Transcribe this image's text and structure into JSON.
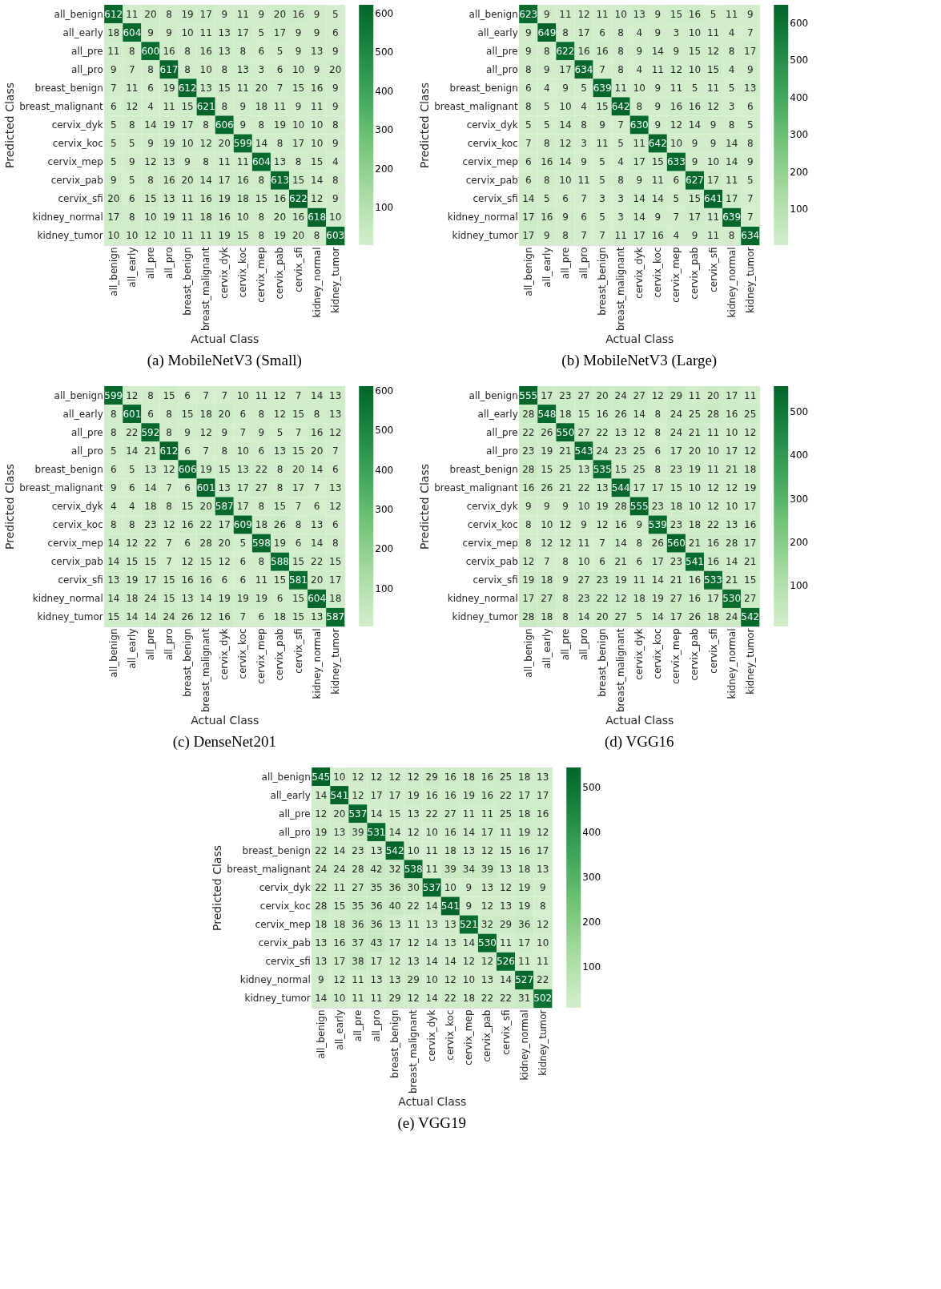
{
  "chart_data": [
    {
      "type": "heatmap",
      "title": "(a)  MobileNetV3 (Small)",
      "xlabel": "Actual Class",
      "ylabel": "Predicted Class",
      "data_labels": true,
      "categories": [
        "all_benign",
        "all_early",
        "all_pre",
        "all_pro",
        "breast_benign",
        "breast_malignant",
        "cervix_dyk",
        "cervix_koc",
        "cervix_mep",
        "cervix_pab",
        "cervix_sfi",
        "kidney_normal",
        "kidney_tumor"
      ],
      "y_categories": [
        "all_benign",
        "all_early",
        "all_pre",
        "all_pro",
        "breast_benign",
        "breast_malignant",
        "cervix_dyk",
        "cervix_koc",
        "cervix_mep",
        "cervix_pab",
        "cervix_sfi",
        "kidney_normal",
        "kidney_tumor"
      ],
      "cells": [
        [
          612,
          11,
          20,
          8,
          19,
          17,
          9,
          11,
          9,
          20,
          16,
          9,
          5
        ],
        [
          18,
          604,
          9,
          9,
          10,
          11,
          13,
          17,
          5,
          17,
          9,
          9,
          6
        ],
        [
          11,
          8,
          600,
          16,
          8,
          16,
          13,
          8,
          6,
          5,
          9,
          13,
          9
        ],
        [
          9,
          7,
          8,
          617,
          8,
          10,
          8,
          13,
          3,
          6,
          10,
          9,
          20
        ],
        [
          7,
          11,
          6,
          19,
          612,
          13,
          15,
          11,
          20,
          7,
          15,
          16,
          9
        ],
        [
          6,
          12,
          4,
          11,
          15,
          621,
          8,
          9,
          18,
          11,
          9,
          11,
          9
        ],
        [
          5,
          8,
          14,
          19,
          17,
          8,
          606,
          9,
          8,
          19,
          10,
          10,
          8
        ],
        [
          5,
          5,
          9,
          19,
          10,
          12,
          20,
          599,
          14,
          8,
          17,
          10,
          9
        ],
        [
          5,
          9,
          12,
          13,
          9,
          8,
          11,
          11,
          604,
          13,
          8,
          15,
          4
        ],
        [
          9,
          5,
          8,
          16,
          20,
          14,
          17,
          16,
          8,
          613,
          15,
          14,
          8
        ],
        [
          20,
          6,
          15,
          13,
          11,
          16,
          19,
          18,
          15,
          16,
          622,
          12,
          9
        ],
        [
          17,
          8,
          10,
          19,
          11,
          18,
          16,
          10,
          8,
          20,
          16,
          618,
          10
        ],
        [
          10,
          10,
          12,
          10,
          11,
          11,
          19,
          15,
          8,
          19,
          20,
          8,
          603
        ]
      ],
      "clim": [
        3,
        622
      ],
      "cticks": [
        100,
        200,
        300,
        400,
        500,
        600
      ]
    },
    {
      "type": "heatmap",
      "title": "(b)  MobileNetV3 (Large)",
      "xlabel": "Actual Class",
      "ylabel": "Predicted Class",
      "data_labels": true,
      "categories": [
        "all_benign",
        "all_early",
        "all_pre",
        "all_pro",
        "breast_benign",
        "breast_malignant",
        "cervix_dyk",
        "cervix_koc",
        "cervix_mep",
        "cervix_pab",
        "cervix_sfi",
        "kidney_normal",
        "kidney_tumor"
      ],
      "y_categories": [
        "all_benign",
        "all_early",
        "all_pre",
        "all_pro",
        "breast_benign",
        "breast_malignant",
        "cervix_dyk",
        "cervix_koc",
        "cervix_mep",
        "cervix_pab",
        "cervix_sfi",
        "kidney_normal",
        "kidney_tumor"
      ],
      "cells": [
        [
          623,
          9,
          11,
          12,
          11,
          10,
          13,
          9,
          15,
          16,
          5,
          11,
          9
        ],
        [
          9,
          649,
          8,
          17,
          6,
          8,
          4,
          9,
          3,
          10,
          11,
          4,
          7
        ],
        [
          9,
          8,
          622,
          16,
          16,
          8,
          9,
          14,
          9,
          15,
          12,
          8,
          17
        ],
        [
          8,
          9,
          17,
          634,
          7,
          8,
          4,
          11,
          12,
          10,
          15,
          4,
          9
        ],
        [
          6,
          4,
          9,
          5,
          639,
          11,
          10,
          9,
          11,
          5,
          11,
          5,
          13
        ],
        [
          8,
          5,
          10,
          4,
          15,
          642,
          8,
          9,
          16,
          16,
          12,
          3,
          6
        ],
        [
          5,
          5,
          14,
          8,
          9,
          7,
          630,
          9,
          12,
          14,
          9,
          8,
          5
        ],
        [
          7,
          8,
          12,
          3,
          11,
          5,
          11,
          642,
          10,
          9,
          9,
          14,
          8
        ],
        [
          6,
          16,
          14,
          9,
          5,
          4,
          17,
          15,
          633,
          9,
          10,
          14,
          9
        ],
        [
          6,
          8,
          10,
          11,
          5,
          8,
          9,
          11,
          6,
          627,
          17,
          11,
          5
        ],
        [
          14,
          5,
          6,
          7,
          3,
          3,
          14,
          14,
          5,
          15,
          641,
          17,
          7
        ],
        [
          17,
          16,
          9,
          6,
          5,
          3,
          14,
          9,
          7,
          17,
          11,
          639,
          7
        ],
        [
          17,
          9,
          8,
          7,
          7,
          11,
          17,
          16,
          4,
          9,
          11,
          8,
          634
        ]
      ],
      "clim": [
        3,
        649
      ],
      "cticks": [
        100,
        200,
        300,
        400,
        500,
        600
      ]
    },
    {
      "type": "heatmap",
      "title": "(c)  DenseNet201",
      "xlabel": "Actual Class",
      "ylabel": "Predicted Class",
      "data_labels": true,
      "categories": [
        "all_benign",
        "all_early",
        "all_pre",
        "all_pro",
        "breast_benign",
        "breast_malignant",
        "cervix_dyk",
        "cervix_koc",
        "cervix_mep",
        "cervix_pab",
        "cervix_sfi",
        "kidney_normal",
        "kidney_tumor"
      ],
      "y_categories": [
        "all_benign",
        "all_early",
        "all_pre",
        "all_pro",
        "breast_benign",
        "breast_malignant",
        "cervix_dyk",
        "cervix_koc",
        "cervix_mep",
        "cervix_pab",
        "cervix_sfi",
        "kidney_normal",
        "kidney_tumor"
      ],
      "cells": [
        [
          599,
          12,
          8,
          15,
          6,
          7,
          7,
          10,
          11,
          12,
          7,
          14,
          13
        ],
        [
          8,
          601,
          6,
          8,
          15,
          18,
          20,
          6,
          8,
          12,
          15,
          8,
          13
        ],
        [
          8,
          22,
          592,
          8,
          9,
          12,
          9,
          7,
          9,
          5,
          7,
          16,
          12
        ],
        [
          5,
          14,
          21,
          612,
          6,
          7,
          8,
          10,
          6,
          13,
          15,
          20,
          7
        ],
        [
          6,
          5,
          13,
          12,
          606,
          19,
          15,
          13,
          22,
          8,
          20,
          14,
          6
        ],
        [
          9,
          6,
          14,
          7,
          6,
          601,
          13,
          17,
          27,
          8,
          17,
          7,
          13
        ],
        [
          4,
          4,
          18,
          8,
          15,
          20,
          587,
          17,
          8,
          15,
          7,
          6,
          12
        ],
        [
          8,
          8,
          23,
          12,
          16,
          22,
          17,
          609,
          18,
          26,
          8,
          13,
          6
        ],
        [
          14,
          12,
          22,
          7,
          6,
          28,
          20,
          5,
          598,
          19,
          6,
          14,
          8
        ],
        [
          14,
          15,
          15,
          7,
          12,
          15,
          12,
          6,
          8,
          588,
          15,
          22,
          15
        ],
        [
          13,
          19,
          17,
          15,
          16,
          16,
          6,
          6,
          11,
          15,
          581,
          20,
          17
        ],
        [
          14,
          18,
          24,
          15,
          13,
          14,
          19,
          19,
          19,
          6,
          15,
          604,
          18
        ],
        [
          15,
          14,
          14,
          24,
          26,
          12,
          16,
          7,
          6,
          18,
          15,
          13,
          587
        ]
      ],
      "clim": [
        4,
        612
      ],
      "cticks": [
        100,
        200,
        300,
        400,
        500,
        600
      ]
    },
    {
      "type": "heatmap",
      "title": "(d)  VGG16",
      "xlabel": "Actual Class",
      "ylabel": "Predicted Class",
      "data_labels": true,
      "categories": [
        "all_benign",
        "all_early",
        "all_pre",
        "all_pro",
        "breast_benign",
        "breast_malignant",
        "cervix_dyk",
        "cervix_koc",
        "cervix_mep",
        "cervix_pab",
        "cervix_sfi",
        "kidney_normal",
        "kidney_tumor"
      ],
      "y_categories": [
        "all_benign",
        "all_early",
        "all_pre",
        "all_pro",
        "breast_benign",
        "breast_malignant",
        "cervix_dyk",
        "cervix_koc",
        "cervix_mep",
        "cervix_pab",
        "cervix_sfi",
        "kidney_normal",
        "kidney_tumor"
      ],
      "cells": [
        [
          555,
          17,
          23,
          27,
          20,
          24,
          27,
          12,
          29,
          11,
          20,
          17,
          11
        ],
        [
          28,
          548,
          18,
          15,
          16,
          26,
          14,
          8,
          24,
          25,
          28,
          16,
          25
        ],
        [
          22,
          26,
          550,
          27,
          22,
          13,
          12,
          8,
          24,
          21,
          11,
          10,
          12
        ],
        [
          23,
          19,
          21,
          543,
          24,
          23,
          25,
          6,
          17,
          20,
          10,
          17,
          12
        ],
        [
          28,
          15,
          25,
          13,
          535,
          15,
          25,
          8,
          23,
          19,
          11,
          21,
          18
        ],
        [
          16,
          26,
          21,
          22,
          13,
          544,
          17,
          17,
          15,
          10,
          12,
          12,
          19
        ],
        [
          9,
          9,
          9,
          10,
          19,
          28,
          555,
          23,
          18,
          10,
          12,
          10,
          17
        ],
        [
          8,
          10,
          12,
          9,
          12,
          16,
          9,
          539,
          23,
          18,
          22,
          13,
          16
        ],
        [
          8,
          12,
          12,
          11,
          7,
          14,
          8,
          26,
          560,
          21,
          16,
          28,
          17
        ],
        [
          12,
          7,
          8,
          10,
          6,
          21,
          6,
          17,
          23,
          541,
          16,
          14,
          21
        ],
        [
          19,
          18,
          9,
          27,
          23,
          19,
          11,
          14,
          21,
          16,
          533,
          21,
          15
        ],
        [
          17,
          27,
          8,
          23,
          22,
          12,
          18,
          19,
          27,
          16,
          17,
          530,
          27
        ],
        [
          28,
          18,
          8,
          14,
          20,
          27,
          5,
          14,
          17,
          26,
          18,
          24,
          542
        ]
      ],
      "clim": [
        5,
        560
      ],
      "cticks": [
        100,
        200,
        300,
        400,
        500
      ]
    },
    {
      "type": "heatmap",
      "title": "(e)  VGG19",
      "xlabel": "Actual Class",
      "ylabel": "Predicted Class",
      "data_labels": true,
      "categories": [
        "all_benign",
        "all_early",
        "all_pre",
        "all_pro",
        "breast_benign",
        "breast_malignant",
        "cervix_dyk",
        "cervix_koc",
        "cervix_mep",
        "cervix_pab",
        "cervix_sfi",
        "kidney_normal",
        "kidney_tumor"
      ],
      "y_categories": [
        "all_benign",
        "all_early",
        "all_pre",
        "all_pro",
        "breast_benign",
        "breast_malignant",
        "cervix_dyk",
        "cervix_koc",
        "cervix_mep",
        "cervix_pab",
        "cervix_sfi",
        "kidney_normal",
        "kidney_tumor"
      ],
      "cells": [
        [
          545,
          10,
          12,
          12,
          12,
          12,
          29,
          16,
          18,
          16,
          25,
          18,
          13
        ],
        [
          14,
          541,
          12,
          17,
          17,
          19,
          16,
          16,
          19,
          16,
          22,
          17,
          17
        ],
        [
          12,
          20,
          537,
          14,
          15,
          13,
          22,
          27,
          11,
          11,
          25,
          18,
          16
        ],
        [
          19,
          13,
          39,
          531,
          14,
          12,
          10,
          16,
          14,
          17,
          11,
          19,
          12
        ],
        [
          22,
          14,
          23,
          13,
          542,
          10,
          11,
          18,
          13,
          12,
          15,
          16,
          17
        ],
        [
          24,
          24,
          28,
          42,
          32,
          538,
          11,
          39,
          34,
          39,
          13,
          18,
          13
        ],
        [
          22,
          11,
          27,
          35,
          36,
          30,
          537,
          10,
          9,
          13,
          12,
          19,
          9
        ],
        [
          28,
          15,
          35,
          36,
          40,
          22,
          14,
          541,
          9,
          12,
          13,
          19,
          8
        ],
        [
          18,
          18,
          36,
          36,
          13,
          11,
          13,
          13,
          521,
          32,
          29,
          36,
          12
        ],
        [
          13,
          16,
          37,
          43,
          17,
          12,
          14,
          13,
          14,
          530,
          11,
          17,
          10
        ],
        [
          13,
          17,
          38,
          17,
          12,
          13,
          14,
          14,
          12,
          12,
          526,
          11,
          11
        ],
        [
          9,
          12,
          11,
          13,
          13,
          29,
          10,
          12,
          10,
          13,
          14,
          527,
          22
        ],
        [
          14,
          10,
          11,
          11,
          29,
          12,
          14,
          22,
          18,
          22,
          22,
          31,
          502
        ]
      ],
      "clim": [
        8,
        545
      ],
      "cticks": [
        100,
        200,
        300,
        400,
        500
      ]
    }
  ]
}
